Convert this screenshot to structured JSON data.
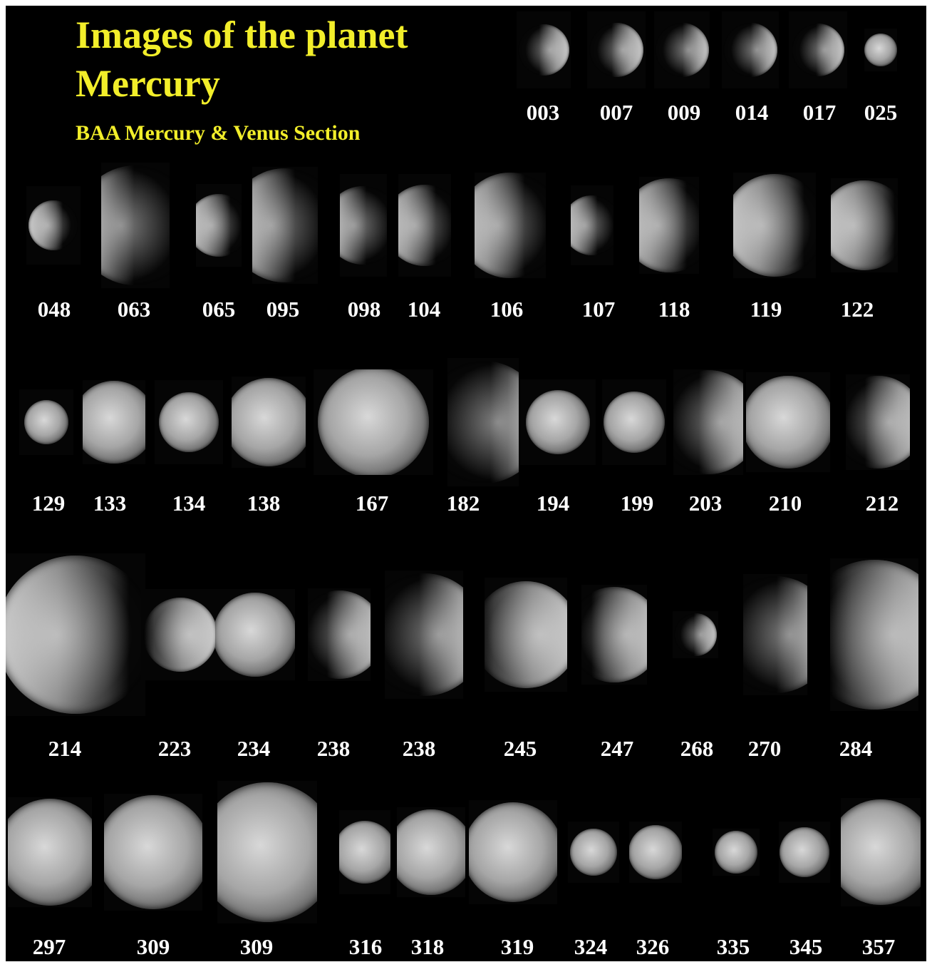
{
  "title": {
    "line1": "Images of the planet",
    "line2": "Mercury",
    "subtitle": "BAA Mercury & Venus Section"
  },
  "colors": {
    "background": "#000000",
    "title": "#f2ee2a",
    "label": "#ffffff"
  },
  "rows": [
    {
      "images": [
        {
          "label": "003",
          "lit": "right",
          "phase": 0.45
        },
        {
          "label": "007",
          "lit": "right",
          "phase": 0.45
        },
        {
          "label": "009",
          "lit": "right",
          "phase": 0.35
        },
        {
          "label": "014",
          "lit": "right",
          "phase": 0.35
        },
        {
          "label": "017",
          "lit": "right",
          "phase": 0.4
        },
        {
          "label": "025",
          "lit": "full",
          "phase": 1.0
        }
      ]
    },
    {
      "images": [
        {
          "label": "048",
          "lit": "left",
          "phase": 0.55
        },
        {
          "label": "063",
          "lit": "left",
          "phase": 0.35
        },
        {
          "label": "065",
          "lit": "left",
          "phase": 0.55
        },
        {
          "label": "095",
          "lit": "left",
          "phase": 0.45
        },
        {
          "label": "098",
          "lit": "left",
          "phase": 0.4
        },
        {
          "label": "104",
          "lit": "left",
          "phase": 0.5
        },
        {
          "label": "106",
          "lit": "left",
          "phase": 0.5
        },
        {
          "label": "107",
          "lit": "left",
          "phase": 0.45
        },
        {
          "label": "118",
          "lit": "left",
          "phase": 0.55
        },
        {
          "label": "119",
          "lit": "left",
          "phase": 0.65
        },
        {
          "label": "122",
          "lit": "left",
          "phase": 0.7
        }
      ]
    },
    {
      "images": [
        {
          "label": "129",
          "lit": "full",
          "phase": 0.9
        },
        {
          "label": "133",
          "lit": "full",
          "phase": 0.85
        },
        {
          "label": "134",
          "lit": "full",
          "phase": 0.95
        },
        {
          "label": "138",
          "lit": "full",
          "phase": 0.95
        },
        {
          "label": "167",
          "lit": "full",
          "phase": 1.0
        },
        {
          "label": "182",
          "lit": "right",
          "phase": 0.3
        },
        {
          "label": "194",
          "lit": "full",
          "phase": 0.95
        },
        {
          "label": "199",
          "lit": "full",
          "phase": 1.0
        },
        {
          "label": "203",
          "lit": "right",
          "phase": 0.45
        },
        {
          "label": "210",
          "lit": "full",
          "phase": 0.9
        },
        {
          "label": "212",
          "lit": "right",
          "phase": 0.5
        }
      ]
    },
    {
      "images": [
        {
          "label": "214",
          "lit": "left",
          "phase": 0.7
        },
        {
          "label": "223",
          "lit": "right",
          "phase": 0.9
        },
        {
          "label": "234",
          "lit": "full",
          "phase": 0.95
        },
        {
          "label": "238",
          "lit": "right",
          "phase": 0.5
        },
        {
          "label": "238",
          "lit": "right",
          "phase": 0.4
        },
        {
          "label": "245",
          "lit": "right",
          "phase": 0.8
        },
        {
          "label": "247",
          "lit": "right",
          "phase": 0.6
        },
        {
          "label": "268",
          "lit": "right",
          "phase": 0.4
        },
        {
          "label": "270",
          "lit": "right",
          "phase": 0.35
        },
        {
          "label": "284",
          "lit": "right",
          "phase": 0.65
        }
      ]
    },
    {
      "images": [
        {
          "label": "297",
          "lit": "full",
          "phase": 0.9
        },
        {
          "label": "309",
          "lit": "full",
          "phase": 0.85
        },
        {
          "label": "309",
          "lit": "full",
          "phase": 0.9
        },
        {
          "label": "316",
          "lit": "full",
          "phase": 0.9
        },
        {
          "label": "318",
          "lit": "full",
          "phase": 0.8
        },
        {
          "label": "319",
          "lit": "full",
          "phase": 0.7
        },
        {
          "label": "324",
          "lit": "full",
          "phase": 1.0
        },
        {
          "label": "326",
          "lit": "full",
          "phase": 1.0
        },
        {
          "label": "335",
          "lit": "full",
          "phase": 1.0
        },
        {
          "label": "345",
          "lit": "full",
          "phase": 1.0
        },
        {
          "label": "357",
          "lit": "full",
          "phase": 0.9
        }
      ]
    }
  ]
}
